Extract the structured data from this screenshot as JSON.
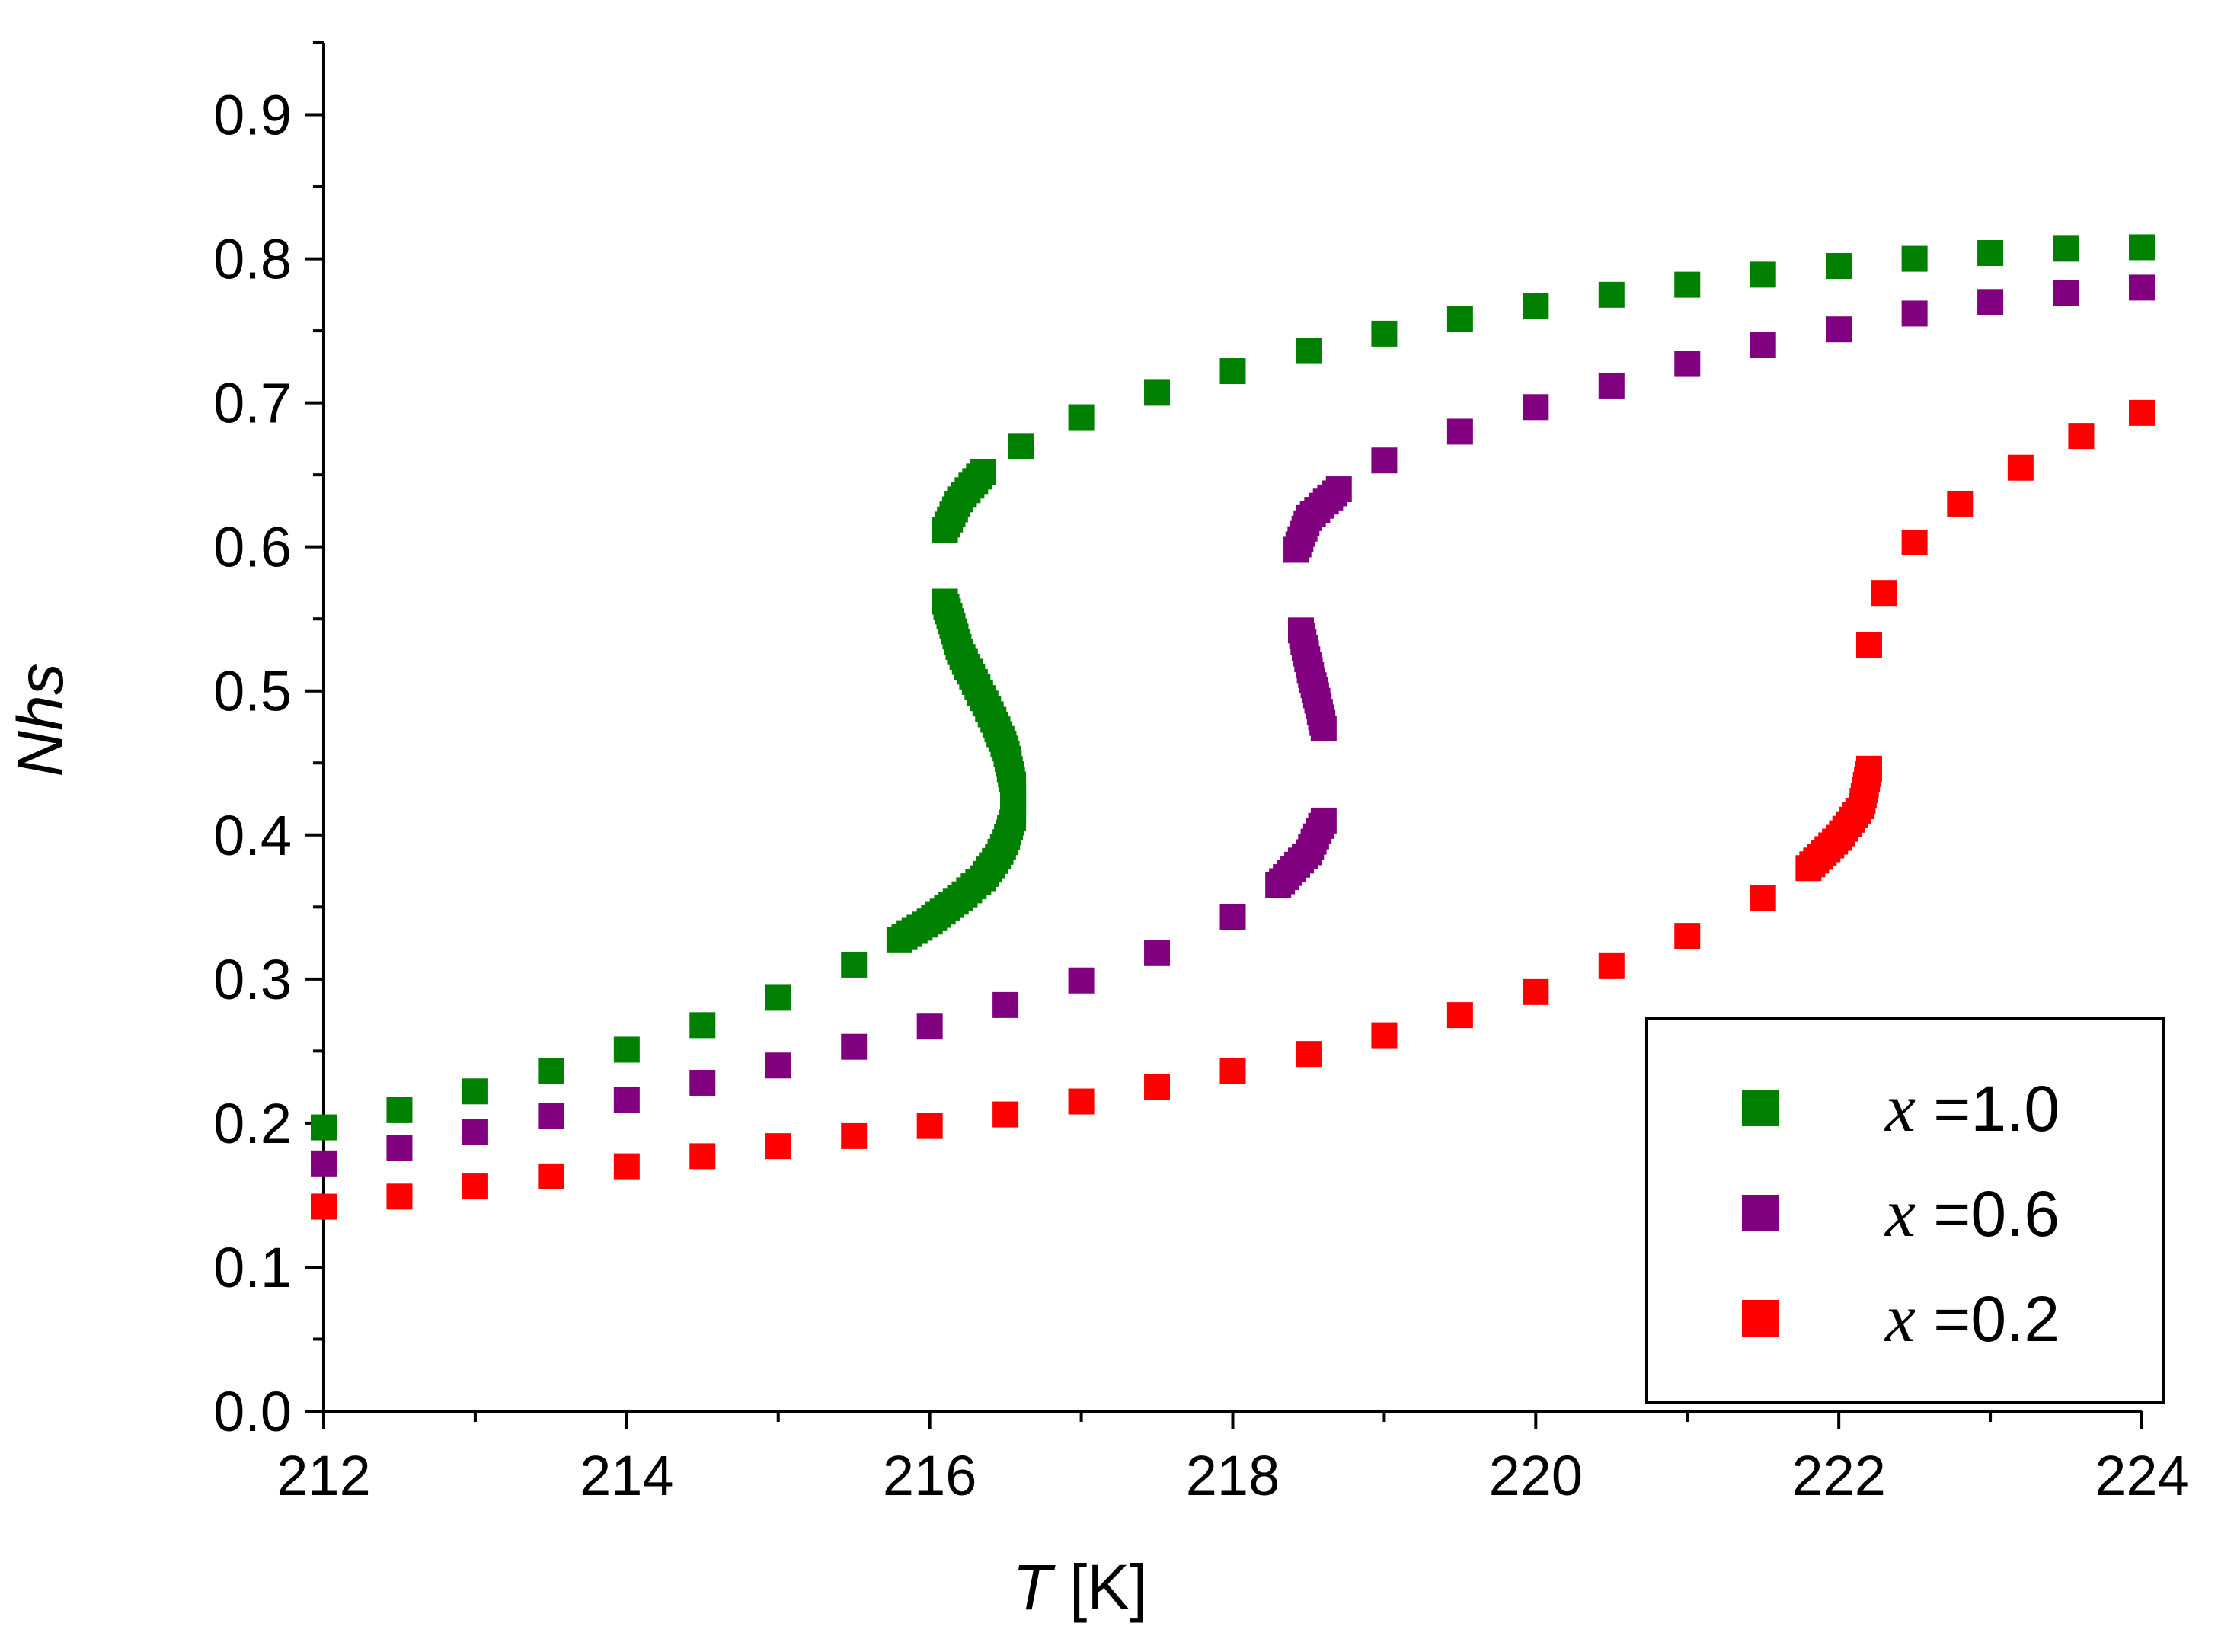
{
  "chart_data": {
    "type": "scatter",
    "title": "",
    "xlabel": {
      "var": "T",
      "unit": " [K]"
    },
    "ylabel": "Nhs",
    "xlim": [
      212,
      224
    ],
    "ylim": [
      0.0,
      0.95
    ],
    "x_ticks": [
      212,
      214,
      216,
      218,
      220,
      222,
      224
    ],
    "x_tick_labels": [
      "212",
      "214",
      "216",
      "218",
      "220",
      "222",
      "224"
    ],
    "y_ticks": [
      0.0,
      0.1,
      0.2,
      0.3,
      0.4,
      0.5,
      0.6,
      0.7,
      0.8,
      0.9
    ],
    "y_tick_labels": [
      "0.0",
      "0.1",
      "0.2",
      "0.3",
      "0.4",
      "0.5",
      "0.6",
      "0.7",
      "0.8",
      "0.9"
    ],
    "grid": false,
    "legend_position": "bottom-right",
    "series": [
      {
        "name": "x =1.0",
        "var": "x",
        "label": " =1.0",
        "color": "#008000",
        "points": [
          [
            212.0,
            0.197
          ],
          [
            212.5,
            0.209
          ],
          [
            213.0,
            0.222
          ],
          [
            213.5,
            0.236
          ],
          [
            214.0,
            0.251
          ],
          [
            214.5,
            0.268
          ],
          [
            215.0,
            0.287
          ],
          [
            215.5,
            0.31
          ],
          [
            215.8,
            0.327
          ],
          [
            216.0,
            0.34
          ],
          [
            216.2,
            0.356
          ],
          [
            216.35,
            0.37
          ],
          [
            216.45,
            0.385
          ],
          [
            216.5,
            0.395
          ],
          [
            216.55,
            0.412
          ],
          [
            216.55,
            0.435
          ],
          [
            216.5,
            0.46
          ],
          [
            216.42,
            0.48
          ],
          [
            216.35,
            0.495
          ],
          [
            216.28,
            0.51
          ],
          [
            216.2,
            0.527
          ],
          [
            216.15,
            0.545
          ],
          [
            216.1,
            0.562
          ],
          [
            216.1,
            0.612
          ],
          [
            216.2,
            0.633
          ],
          [
            216.35,
            0.652
          ],
          [
            216.6,
            0.67
          ],
          [
            217.0,
            0.69
          ],
          [
            217.5,
            0.707
          ],
          [
            218.0,
            0.722
          ],
          [
            218.5,
            0.736
          ],
          [
            219.0,
            0.748
          ],
          [
            219.5,
            0.758
          ],
          [
            220.0,
            0.767
          ],
          [
            220.5,
            0.775
          ],
          [
            221.0,
            0.782
          ],
          [
            221.5,
            0.789
          ],
          [
            222.0,
            0.795
          ],
          [
            222.5,
            0.8
          ],
          [
            223.0,
            0.804
          ],
          [
            223.5,
            0.807
          ],
          [
            224.0,
            0.808
          ]
        ]
      },
      {
        "name": "x =0.6",
        "var": "x",
        "label": " =0.6",
        "color": "#800080",
        "points": [
          [
            212.0,
            0.172
          ],
          [
            212.5,
            0.183
          ],
          [
            213.0,
            0.194
          ],
          [
            213.5,
            0.205
          ],
          [
            214.0,
            0.216
          ],
          [
            214.5,
            0.228
          ],
          [
            215.0,
            0.24
          ],
          [
            215.5,
            0.253
          ],
          [
            216.0,
            0.267
          ],
          [
            216.5,
            0.282
          ],
          [
            217.0,
            0.299
          ],
          [
            217.5,
            0.318
          ],
          [
            218.0,
            0.343
          ],
          [
            218.3,
            0.365
          ],
          [
            218.5,
            0.388
          ],
          [
            218.6,
            0.41
          ],
          [
            218.6,
            0.474
          ],
          [
            218.55,
            0.497
          ],
          [
            218.5,
            0.518
          ],
          [
            218.45,
            0.542
          ],
          [
            218.42,
            0.598
          ],
          [
            218.5,
            0.62
          ],
          [
            218.7,
            0.64
          ],
          [
            219.0,
            0.66
          ],
          [
            219.5,
            0.68
          ],
          [
            220.0,
            0.697
          ],
          [
            220.5,
            0.712
          ],
          [
            221.0,
            0.727
          ],
          [
            221.5,
            0.74
          ],
          [
            222.0,
            0.751
          ],
          [
            222.5,
            0.762
          ],
          [
            223.0,
            0.77
          ],
          [
            223.5,
            0.776
          ],
          [
            224.0,
            0.78
          ]
        ]
      },
      {
        "name": "x =0.2",
        "var": "x",
        "label": " =0.2",
        "color": "#ff0000",
        "points": [
          [
            212.0,
            0.142
          ],
          [
            212.5,
            0.149
          ],
          [
            213.0,
            0.156
          ],
          [
            213.5,
            0.163
          ],
          [
            214.0,
            0.17
          ],
          [
            214.5,
            0.177
          ],
          [
            215.0,
            0.184
          ],
          [
            215.5,
            0.191
          ],
          [
            216.0,
            0.198
          ],
          [
            216.5,
            0.206
          ],
          [
            217.0,
            0.215
          ],
          [
            217.5,
            0.225
          ],
          [
            218.0,
            0.236
          ],
          [
            218.5,
            0.248
          ],
          [
            219.0,
            0.261
          ],
          [
            219.5,
            0.275
          ],
          [
            220.0,
            0.291
          ],
          [
            220.5,
            0.309
          ],
          [
            221.0,
            0.33
          ],
          [
            221.5,
            0.356
          ],
          [
            221.8,
            0.377
          ],
          [
            222.0,
            0.398
          ],
          [
            222.15,
            0.42
          ],
          [
            222.2,
            0.446
          ],
          [
            222.2,
            0.532
          ],
          [
            222.3,
            0.568
          ],
          [
            222.5,
            0.603
          ],
          [
            222.8,
            0.63
          ],
          [
            223.2,
            0.655
          ],
          [
            223.6,
            0.677
          ],
          [
            224.0,
            0.693
          ]
        ]
      }
    ]
  }
}
